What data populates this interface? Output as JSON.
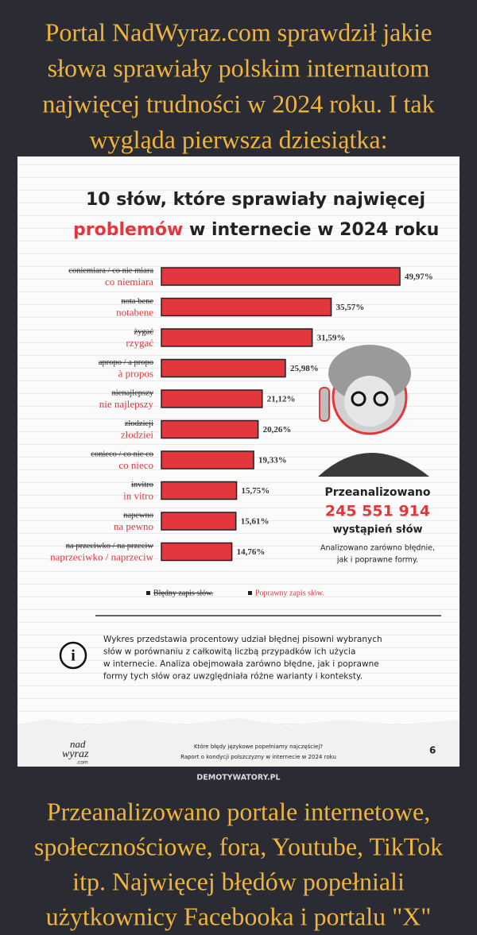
{
  "header": [
    "Portal NadWyraz.com sprawdził jakie",
    "słowa sprawiały polskim internautom",
    "najwięcej trudności w 2024 roku. I tak",
    "wygląda pierwsza dziesiątka:"
  ],
  "chart_data": {
    "type": "bar",
    "orientation": "horizontal",
    "title": [
      "10 słów, które sprawiały najwięcej",
      "problemów",
      "w internecie w 2024 roku"
    ],
    "misspellings": [
      "coniemiara / co nie miara",
      "nota bene",
      "żygać",
      "apropo / a propo",
      "nienajlepszy",
      "złodzieji",
      "conieco / co nie co",
      "invitro",
      "napewno",
      "na przeciwko / na przeciw"
    ],
    "categories": [
      "co niemiara",
      "notabene",
      "rzygać",
      "à propos",
      "nie najlepszy",
      "złodziei",
      "co nieco",
      "in vitro",
      "na pewno",
      "naprzeciwko / naprzeciw"
    ],
    "values": [
      49.97,
      35.57,
      31.59,
      25.98,
      21.12,
      20.26,
      19.33,
      15.75,
      15.61,
      14.76
    ],
    "value_labels": [
      "49,97%",
      "35,57%",
      "31,59%",
      "25,98%",
      "21,12%",
      "20,26%",
      "19,33%",
      "15,75%",
      "15,61%",
      "14,76%"
    ],
    "color": "#e2373d",
    "legend": [
      "Błędny zapis słów.",
      "Poprawny zapis słów."
    ],
    "annotation": [
      "Przeanalizowano",
      "245 551 914",
      "wystąpień słów",
      "Analizowano zarówno błędnie,",
      "jak i poprawne formy."
    ]
  },
  "info": [
    "Wykres przedstawia procentowy udział błędnej pisowni wybranych",
    "słów w porównaniu z całkowitą liczbą przypadków ich użycia",
    "w internecie. Analiza obejmowała zarówno błędne, jak i poprawne",
    "formy tych słów oraz uwzględniała różne warianty i konteksty."
  ],
  "footer": {
    "logo": [
      "nad",
      "wyraz",
      ".com"
    ],
    "lines": [
      "Które błędy językowe popełniamy najczęściej?",
      "Raport o kondycji polszczyzny w internecie w 2024 roku"
    ],
    "page": 6
  },
  "watermark": "DEMOTYWATORY.PL",
  "caption": [
    "Przeanalizowano portale internetowe,",
    "społecznościowe, fora, Youtube, TikTok",
    "itp. Najwięcej błędów popełniali",
    "użytkownicy Facebooka i portalu \"X\""
  ]
}
